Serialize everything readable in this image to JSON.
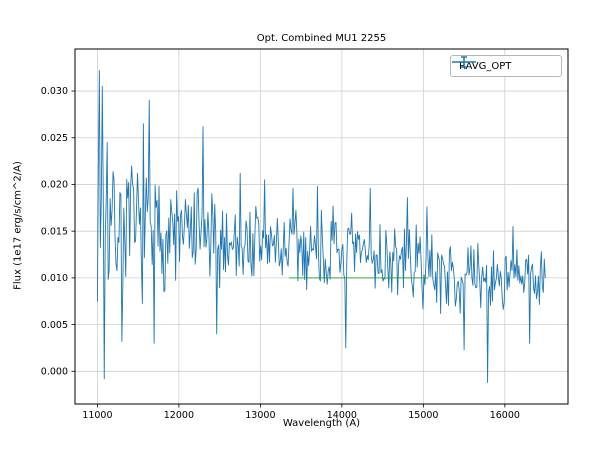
{
  "chart_data": {
    "type": "line",
    "title": "Opt. Combined MU1 2255",
    "xlabel": "Wavelength (A)",
    "ylabel": "Flux (1e17 erg/s/cm^2/A)",
    "xlim": [
      10725,
      16775
    ],
    "ylim": [
      -0.0035,
      0.0345
    ],
    "xticks": [
      11000,
      12000,
      13000,
      14000,
      15000,
      16000
    ],
    "yticks": [
      0.0,
      0.005,
      0.01,
      0.015,
      0.02,
      0.025,
      0.03
    ],
    "ytick_labels": [
      "0.000",
      "0.005",
      "0.010",
      "0.015",
      "0.020",
      "0.025",
      "0.030"
    ],
    "grid": true,
    "grid_color": "#cfcfcf",
    "line_color": "#1f77b4",
    "legend": {
      "position": "upper right",
      "entries": [
        {
          "label": "RAVG_OPT",
          "color": "#1f77b4",
          "style": "errorbar"
        }
      ]
    },
    "series": [
      {
        "name": "RAVG_OPT",
        "color": "#1f77b4",
        "x_start": 11000,
        "x_end": 16500,
        "step": 12,
        "seed": 7,
        "trend": [
          [
            11000,
            0.016
          ],
          [
            11600,
            0.015
          ],
          [
            12500,
            0.014
          ],
          [
            13500,
            0.013
          ],
          [
            14500,
            0.012
          ],
          [
            15500,
            0.01
          ],
          [
            16500,
            0.0098
          ]
        ],
        "noise_amp": [
          [
            11000,
            0.0092
          ],
          [
            11600,
            0.008
          ],
          [
            12500,
            0.0062
          ],
          [
            13500,
            0.0056
          ],
          [
            14500,
            0.005
          ],
          [
            15500,
            0.0044
          ],
          [
            16500,
            0.0038
          ]
        ],
        "spikes": [
          [
            11020,
            0.0322
          ],
          [
            11060,
            0.0305
          ],
          [
            11085,
            -0.0008
          ],
          [
            11120,
            0.0245
          ],
          [
            11300,
            0.0032
          ],
          [
            11560,
            0.0265
          ],
          [
            11640,
            0.029
          ],
          [
            11700,
            0.003
          ],
          [
            12300,
            0.0262
          ],
          [
            12460,
            0.004
          ],
          [
            12750,
            0.0212
          ],
          [
            13050,
            0.0205
          ],
          [
            13400,
            0.0196
          ],
          [
            13700,
            0.0198
          ],
          [
            14050,
            0.0025
          ],
          [
            14350,
            0.0196
          ],
          [
            14800,
            0.0186
          ],
          [
            15050,
            0.0176
          ],
          [
            15500,
            0.0023
          ],
          [
            15790,
            -0.0012
          ],
          [
            16100,
            0.0155
          ],
          [
            16300,
            0.003
          ],
          [
            16450,
            0.0128
          ]
        ]
      }
    ],
    "reference_line": {
      "color": "#2ca02c",
      "y": 0.01,
      "x_start": 13350,
      "x_end": 15060
    }
  }
}
